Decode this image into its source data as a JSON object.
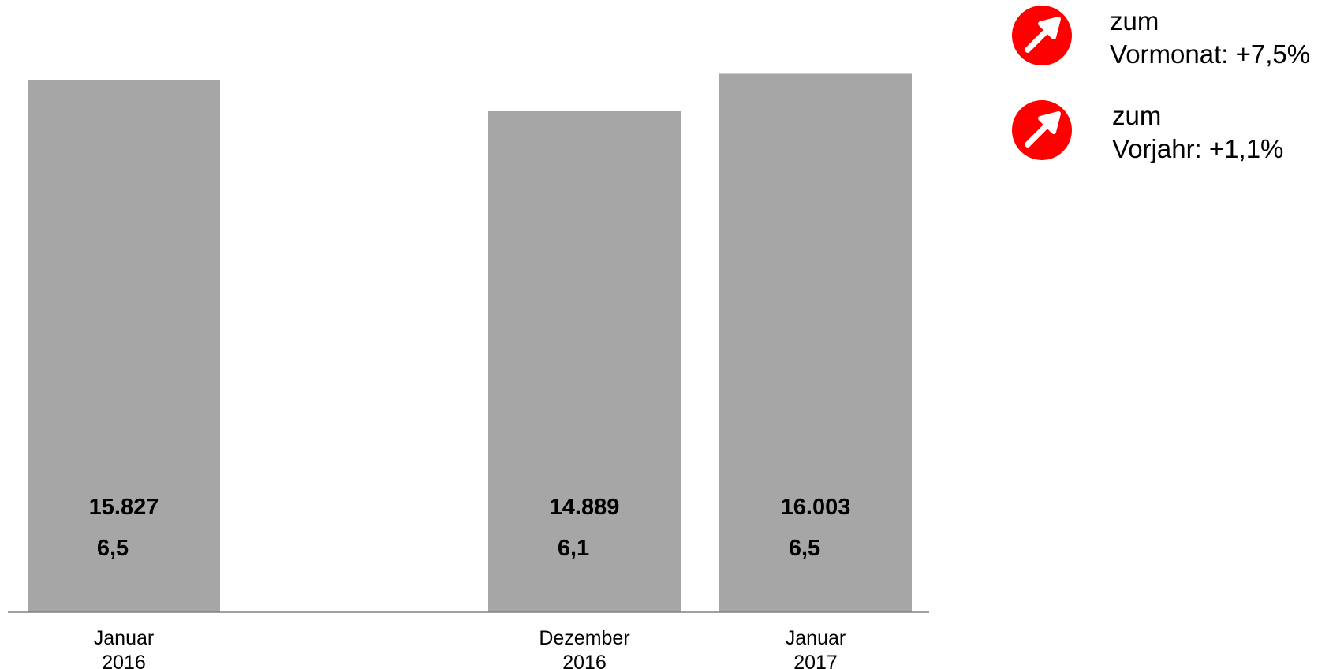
{
  "chart_data": {
    "type": "bar",
    "categories": [
      [
        "Januar",
        "2016"
      ],
      [
        "Dezember",
        "2016"
      ],
      [
        "Januar",
        "2017"
      ]
    ],
    "values": [
      15827,
      14889,
      16003
    ],
    "value_labels": [
      "15.827",
      "14.889",
      "16.003"
    ],
    "secondary_labels": [
      "6,5",
      "6,1",
      "6,5"
    ],
    "bar_color": "#a6a6a6",
    "axis_color": "#808080",
    "gap_after_first": true,
    "title": "",
    "xlabel": "",
    "ylabel": ""
  },
  "legend": {
    "accent_color": "#ff0000",
    "items": [
      {
        "icon": "arrow-up-right-icon",
        "line1": "zum",
        "line2": "Vormonat: +7,5%"
      },
      {
        "icon": "arrow-up-right-icon",
        "line1": "zum",
        "line2": "Vorjahr: +1,1%"
      }
    ]
  }
}
